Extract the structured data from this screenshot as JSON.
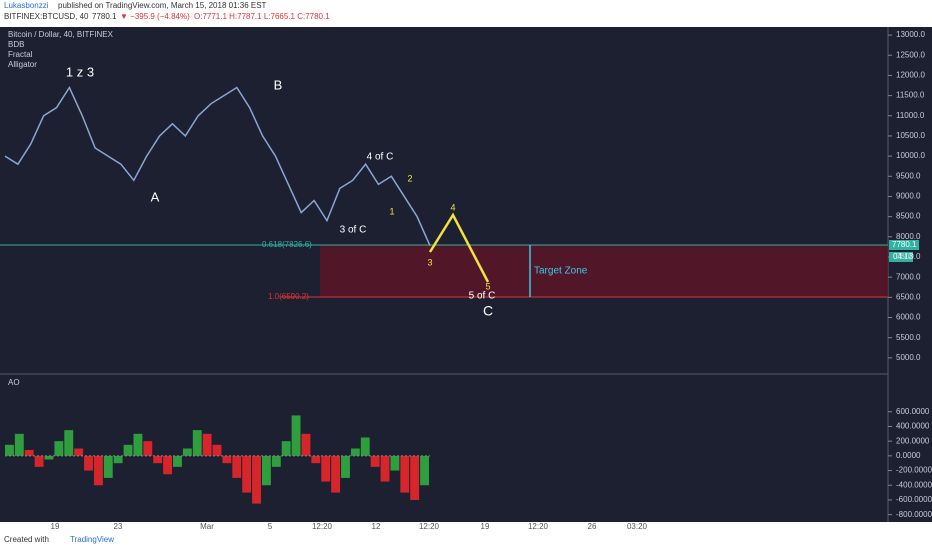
{
  "header": {
    "author": "Lukasbonzzi",
    "published": "published on TradingView.com, March 15, 2018 01:36 EST",
    "symbol": "BITFINEX:BTCUSD, 40",
    "last": "7780.1",
    "change": "▼ −395.9 (−4.84%)",
    "ohlc": "O:7771.1 H:7787.1 L:7665.1 C:7780.1"
  },
  "legend": [
    "Bitcoin / Dollar, 40, BITFINEX",
    "BDB",
    "Fractal",
    "Alligator"
  ],
  "price_chart": {
    "type": "line",
    "color": "#8aa6d6",
    "values": [
      10000,
      9800,
      10300,
      11000,
      11200,
      11700,
      11000,
      10200,
      10000,
      9800,
      9400,
      10000,
      10500,
      10800,
      10500,
      11000,
      11300,
      11500,
      11700,
      11200,
      10500,
      10000,
      9300,
      8600,
      8900,
      8400,
      9200,
      9400,
      9800,
      9300,
      9500,
      9000,
      8500,
      7780
    ],
    "ylim": [
      4600,
      13200
    ],
    "yticks": [
      {
        "value": 13000,
        "label": "13000.0"
      },
      {
        "value": 12500,
        "label": "12500.0"
      },
      {
        "value": 12000,
        "label": "12000.0"
      },
      {
        "value": 11500,
        "label": "11500.0"
      },
      {
        "value": 11000,
        "label": "11000.0"
      },
      {
        "value": 10500,
        "label": "10500.0"
      },
      {
        "value": 10000,
        "label": "10000.0"
      },
      {
        "value": 9500,
        "label": "9500.0"
      },
      {
        "value": 9000,
        "label": "9000.0"
      },
      {
        "value": 8500,
        "label": "8500.0"
      },
      {
        "value": 8000,
        "label": "8000.0"
      },
      {
        "value": 7500,
        "label": "7500.0"
      },
      {
        "value": 7000,
        "label": "7000.0"
      },
      {
        "value": 6500,
        "label": "6500.0"
      },
      {
        "value": 6000,
        "label": "6000.0"
      },
      {
        "value": 5500,
        "label": "5500.0"
      },
      {
        "value": 5000,
        "label": "5000.0"
      }
    ],
    "last_price": "7780.1",
    "countdown": "04:13",
    "fib_upper": "0.618(7826.6)",
    "fib_lower": "1.0(6590.2)",
    "target": "Target Zone",
    "annotations": [
      "1 z 3",
      "A",
      "B",
      "3 of C",
      "4 of C",
      "1",
      "2",
      "3",
      "4",
      "5",
      "5 of C",
      "C"
    ]
  },
  "ao_chart": {
    "type": "bar",
    "title": "AO",
    "values": [
      150,
      300,
      80,
      -150,
      -50,
      200,
      350,
      100,
      -200,
      -400,
      -300,
      -100,
      150,
      300,
      200,
      -100,
      -250,
      -150,
      100,
      350,
      300,
      150,
      -100,
      -300,
      -500,
      -650,
      -400,
      -150,
      200,
      550,
      300,
      -100,
      -350,
      -500,
      -300,
      100,
      250,
      -150,
      -350,
      -200,
      -500,
      -600,
      -400
    ],
    "ylim": [
      -900,
      1100
    ],
    "yticks": [
      {
        "value": 600,
        "label": "600.0000"
      },
      {
        "value": 400,
        "label": "400.0000"
      },
      {
        "value": 200,
        "label": "200.0000"
      },
      {
        "value": 0,
        "label": "0.0000"
      },
      {
        "value": -200,
        "label": "-200.0000"
      },
      {
        "value": -400,
        "label": "-400.0000"
      },
      {
        "value": -600,
        "label": "-600.0000"
      },
      {
        "value": -800,
        "label": "-800.0000"
      }
    ]
  },
  "time_axis": [
    "19",
    "23",
    "Mar",
    "5",
    "12:20",
    "12",
    "12:20",
    "19",
    "12:20",
    "26",
    "03:20"
  ],
  "footer": {
    "created": "Created with",
    "brand": "TradingView"
  }
}
